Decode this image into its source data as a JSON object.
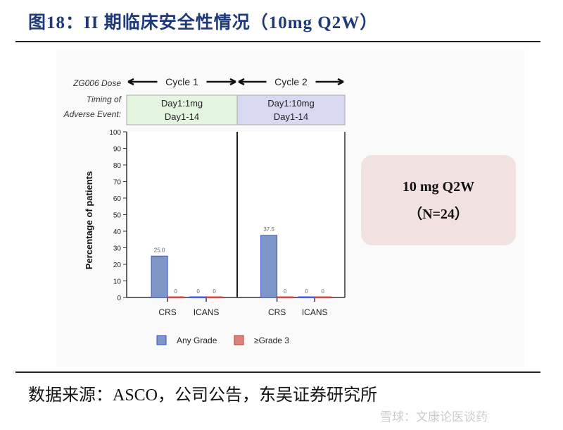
{
  "title": "图18：II 期临床安全性情况（10mg Q2W）",
  "source": "数据来源：ASCO，公司公告，东吴证券研究所",
  "watermark": "雪球：文康论医谈药",
  "summary_box": {
    "line1": "10 mg Q2W",
    "line2": "（N=24）"
  },
  "header": {
    "dose_label": "ZG006 Dose",
    "timing_label_1": "Timing of",
    "timing_label_2": "Adverse Event:",
    "cycles": [
      {
        "label": "Cycle 1",
        "line1": "Day1:1mg",
        "line2": "Day1-14",
        "color": "#e3f5df"
      },
      {
        "label": "Cycle 2",
        "line1": "Day1:10mg",
        "line2": "Day1-14",
        "color": "#d8d8f0"
      }
    ]
  },
  "chart_data": {
    "type": "bar",
    "ylabel": "Percentage of patients",
    "ylim": [
      0,
      100
    ],
    "yticks": [
      0,
      10,
      20,
      30,
      40,
      50,
      60,
      70,
      80,
      90,
      100
    ],
    "panels": [
      {
        "cycle": "Cycle 1",
        "categories": [
          "CRS",
          "ICANS"
        ],
        "series": [
          {
            "name": "Any Grade",
            "values": [
              25.0,
              0
            ],
            "labels": [
              "25.0",
              "0"
            ]
          },
          {
            "name": "≥Grade 3",
            "values": [
              0,
              0
            ],
            "labels": [
              "0",
              "0"
            ]
          }
        ]
      },
      {
        "cycle": "Cycle 2",
        "categories": [
          "CRS",
          "ICANS"
        ],
        "series": [
          {
            "name": "Any Grade",
            "values": [
              37.5,
              0
            ],
            "labels": [
              "37.5",
              "0"
            ]
          },
          {
            "name": "≥Grade 3",
            "values": [
              0,
              0
            ],
            "labels": [
              "0",
              "0"
            ]
          }
        ]
      }
    ],
    "legend": [
      {
        "name": "Any Grade",
        "color": "#7f97c8",
        "stroke": "#3b4fd8"
      },
      {
        "name": "≥Grade 3",
        "color": "#d9827a",
        "stroke": "#c0403a"
      }
    ],
    "legend_position": "bottom",
    "grid": false
  }
}
